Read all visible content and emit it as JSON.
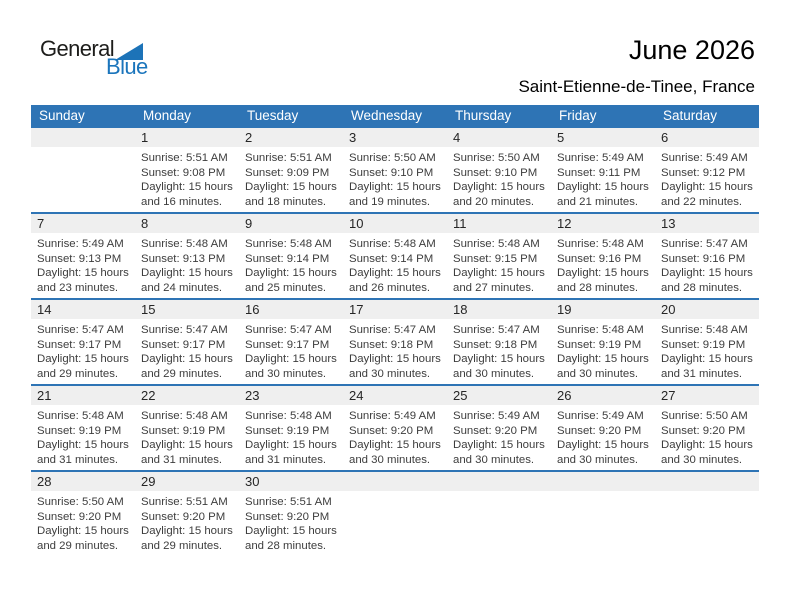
{
  "logo": {
    "line1": "General",
    "line2": "Blue"
  },
  "header": {
    "title": "June 2026",
    "subtitle": "Saint-Etienne-de-Tinee, France"
  },
  "colors": {
    "header_blue": "#2e74b5",
    "row_line_blue": "#2e74b5",
    "band_gray": "#efefef",
    "logo_blue": "#1b75bc",
    "detail_text": "#3d3d3d"
  },
  "calendar": {
    "day_headers": [
      "Sunday",
      "Monday",
      "Tuesday",
      "Wednesday",
      "Thursday",
      "Friday",
      "Saturday"
    ],
    "labels": {
      "sunrise": "Sunrise:",
      "sunset": "Sunset:",
      "daylight": "Daylight:"
    },
    "weeks": [
      [
        null,
        {
          "day": "1",
          "sunrise": "5:51 AM",
          "sunset": "9:08 PM",
          "daylight_line1": "15 hours",
          "daylight_line2": "and 16 minutes."
        },
        {
          "day": "2",
          "sunrise": "5:51 AM",
          "sunset": "9:09 PM",
          "daylight_line1": "15 hours",
          "daylight_line2": "and 18 minutes."
        },
        {
          "day": "3",
          "sunrise": "5:50 AM",
          "sunset": "9:10 PM",
          "daylight_line1": "15 hours",
          "daylight_line2": "and 19 minutes."
        },
        {
          "day": "4",
          "sunrise": "5:50 AM",
          "sunset": "9:10 PM",
          "daylight_line1": "15 hours",
          "daylight_line2": "and 20 minutes."
        },
        {
          "day": "5",
          "sunrise": "5:49 AM",
          "sunset": "9:11 PM",
          "daylight_line1": "15 hours",
          "daylight_line2": "and 21 minutes."
        },
        {
          "day": "6",
          "sunrise": "5:49 AM",
          "sunset": "9:12 PM",
          "daylight_line1": "15 hours",
          "daylight_line2": "and 22 minutes."
        }
      ],
      [
        {
          "day": "7",
          "sunrise": "5:49 AM",
          "sunset": "9:13 PM",
          "daylight_line1": "15 hours",
          "daylight_line2": "and 23 minutes."
        },
        {
          "day": "8",
          "sunrise": "5:48 AM",
          "sunset": "9:13 PM",
          "daylight_line1": "15 hours",
          "daylight_line2": "and 24 minutes."
        },
        {
          "day": "9",
          "sunrise": "5:48 AM",
          "sunset": "9:14 PM",
          "daylight_line1": "15 hours",
          "daylight_line2": "and 25 minutes."
        },
        {
          "day": "10",
          "sunrise": "5:48 AM",
          "sunset": "9:14 PM",
          "daylight_line1": "15 hours",
          "daylight_line2": "and 26 minutes."
        },
        {
          "day": "11",
          "sunrise": "5:48 AM",
          "sunset": "9:15 PM",
          "daylight_line1": "15 hours",
          "daylight_line2": "and 27 minutes."
        },
        {
          "day": "12",
          "sunrise": "5:48 AM",
          "sunset": "9:16 PM",
          "daylight_line1": "15 hours",
          "daylight_line2": "and 28 minutes."
        },
        {
          "day": "13",
          "sunrise": "5:47 AM",
          "sunset": "9:16 PM",
          "daylight_line1": "15 hours",
          "daylight_line2": "and 28 minutes."
        }
      ],
      [
        {
          "day": "14",
          "sunrise": "5:47 AM",
          "sunset": "9:17 PM",
          "daylight_line1": "15 hours",
          "daylight_line2": "and 29 minutes."
        },
        {
          "day": "15",
          "sunrise": "5:47 AM",
          "sunset": "9:17 PM",
          "daylight_line1": "15 hours",
          "daylight_line2": "and 29 minutes."
        },
        {
          "day": "16",
          "sunrise": "5:47 AM",
          "sunset": "9:17 PM",
          "daylight_line1": "15 hours",
          "daylight_line2": "and 30 minutes."
        },
        {
          "day": "17",
          "sunrise": "5:47 AM",
          "sunset": "9:18 PM",
          "daylight_line1": "15 hours",
          "daylight_line2": "and 30 minutes."
        },
        {
          "day": "18",
          "sunrise": "5:47 AM",
          "sunset": "9:18 PM",
          "daylight_line1": "15 hours",
          "daylight_line2": "and 30 minutes."
        },
        {
          "day": "19",
          "sunrise": "5:48 AM",
          "sunset": "9:19 PM",
          "daylight_line1": "15 hours",
          "daylight_line2": "and 30 minutes."
        },
        {
          "day": "20",
          "sunrise": "5:48 AM",
          "sunset": "9:19 PM",
          "daylight_line1": "15 hours",
          "daylight_line2": "and 31 minutes."
        }
      ],
      [
        {
          "day": "21",
          "sunrise": "5:48 AM",
          "sunset": "9:19 PM",
          "daylight_line1": "15 hours",
          "daylight_line2": "and 31 minutes."
        },
        {
          "day": "22",
          "sunrise": "5:48 AM",
          "sunset": "9:19 PM",
          "daylight_line1": "15 hours",
          "daylight_line2": "and 31 minutes."
        },
        {
          "day": "23",
          "sunrise": "5:48 AM",
          "sunset": "9:19 PM",
          "daylight_line1": "15 hours",
          "daylight_line2": "and 31 minutes."
        },
        {
          "day": "24",
          "sunrise": "5:49 AM",
          "sunset": "9:20 PM",
          "daylight_line1": "15 hours",
          "daylight_line2": "and 30 minutes."
        },
        {
          "day": "25",
          "sunrise": "5:49 AM",
          "sunset": "9:20 PM",
          "daylight_line1": "15 hours",
          "daylight_line2": "and 30 minutes."
        },
        {
          "day": "26",
          "sunrise": "5:49 AM",
          "sunset": "9:20 PM",
          "daylight_line1": "15 hours",
          "daylight_line2": "and 30 minutes."
        },
        {
          "day": "27",
          "sunrise": "5:50 AM",
          "sunset": "9:20 PM",
          "daylight_line1": "15 hours",
          "daylight_line2": "and 30 minutes."
        }
      ],
      [
        {
          "day": "28",
          "sunrise": "5:50 AM",
          "sunset": "9:20 PM",
          "daylight_line1": "15 hours",
          "daylight_line2": "and 29 minutes."
        },
        {
          "day": "29",
          "sunrise": "5:51 AM",
          "sunset": "9:20 PM",
          "daylight_line1": "15 hours",
          "daylight_line2": "and 29 minutes."
        },
        {
          "day": "30",
          "sunrise": "5:51 AM",
          "sunset": "9:20 PM",
          "daylight_line1": "15 hours",
          "daylight_line2": "and 28 minutes."
        },
        null,
        null,
        null,
        null
      ]
    ]
  }
}
